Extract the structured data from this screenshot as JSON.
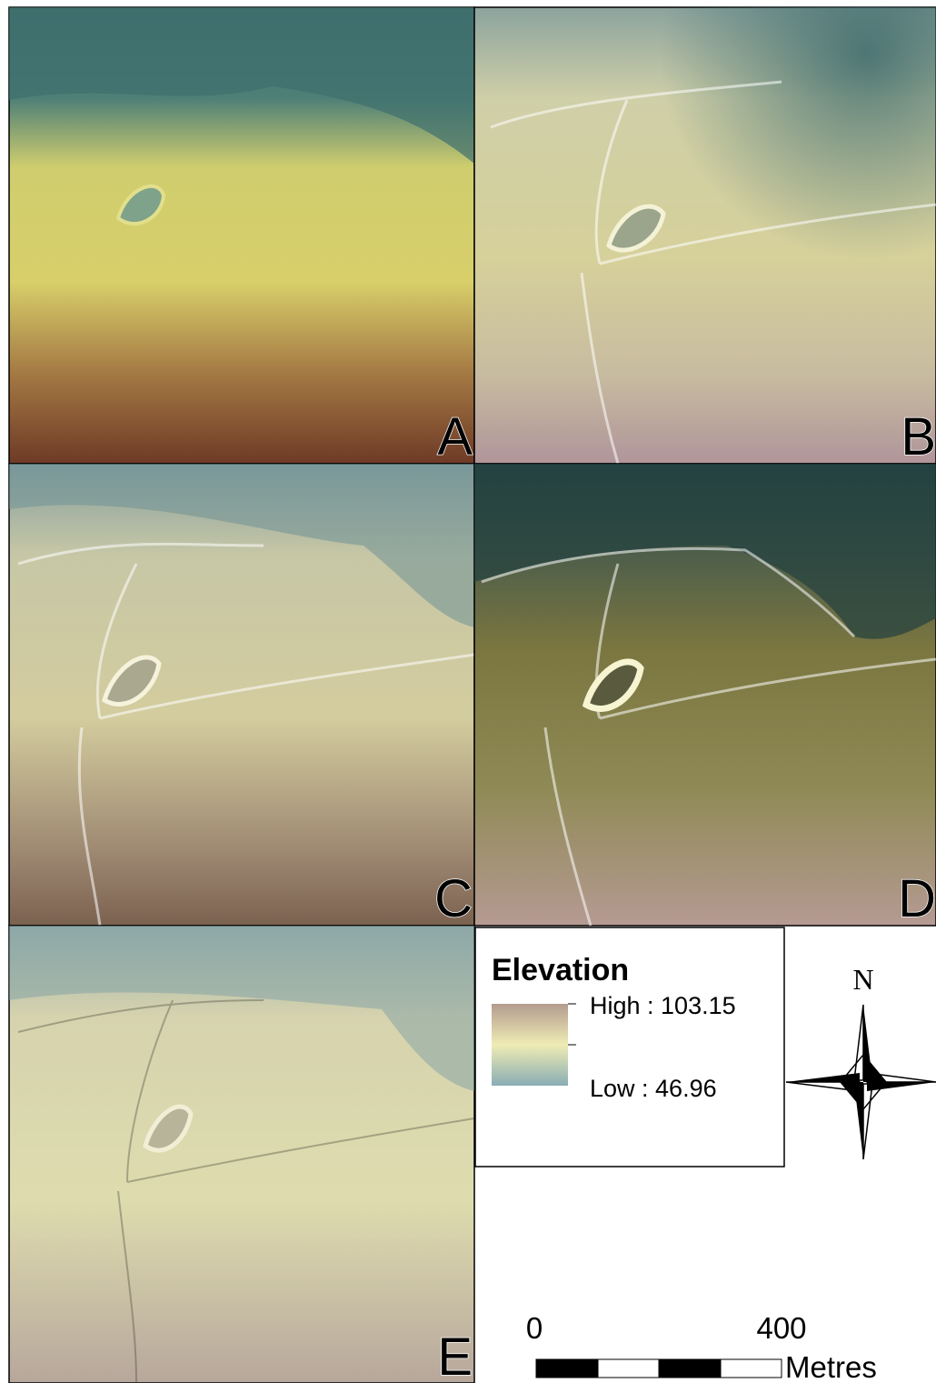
{
  "panels": [
    {
      "label": "A"
    },
    {
      "label": "B"
    },
    {
      "label": "C"
    },
    {
      "label": "D"
    },
    {
      "label": "E"
    }
  ],
  "legend": {
    "title": "Elevation",
    "high": "High : 103.15",
    "low": "Low : 46.96"
  },
  "north_arrow": {
    "label": "N"
  },
  "scale_bar": {
    "start": "0",
    "end": "400",
    "unit": "Metres"
  }
}
